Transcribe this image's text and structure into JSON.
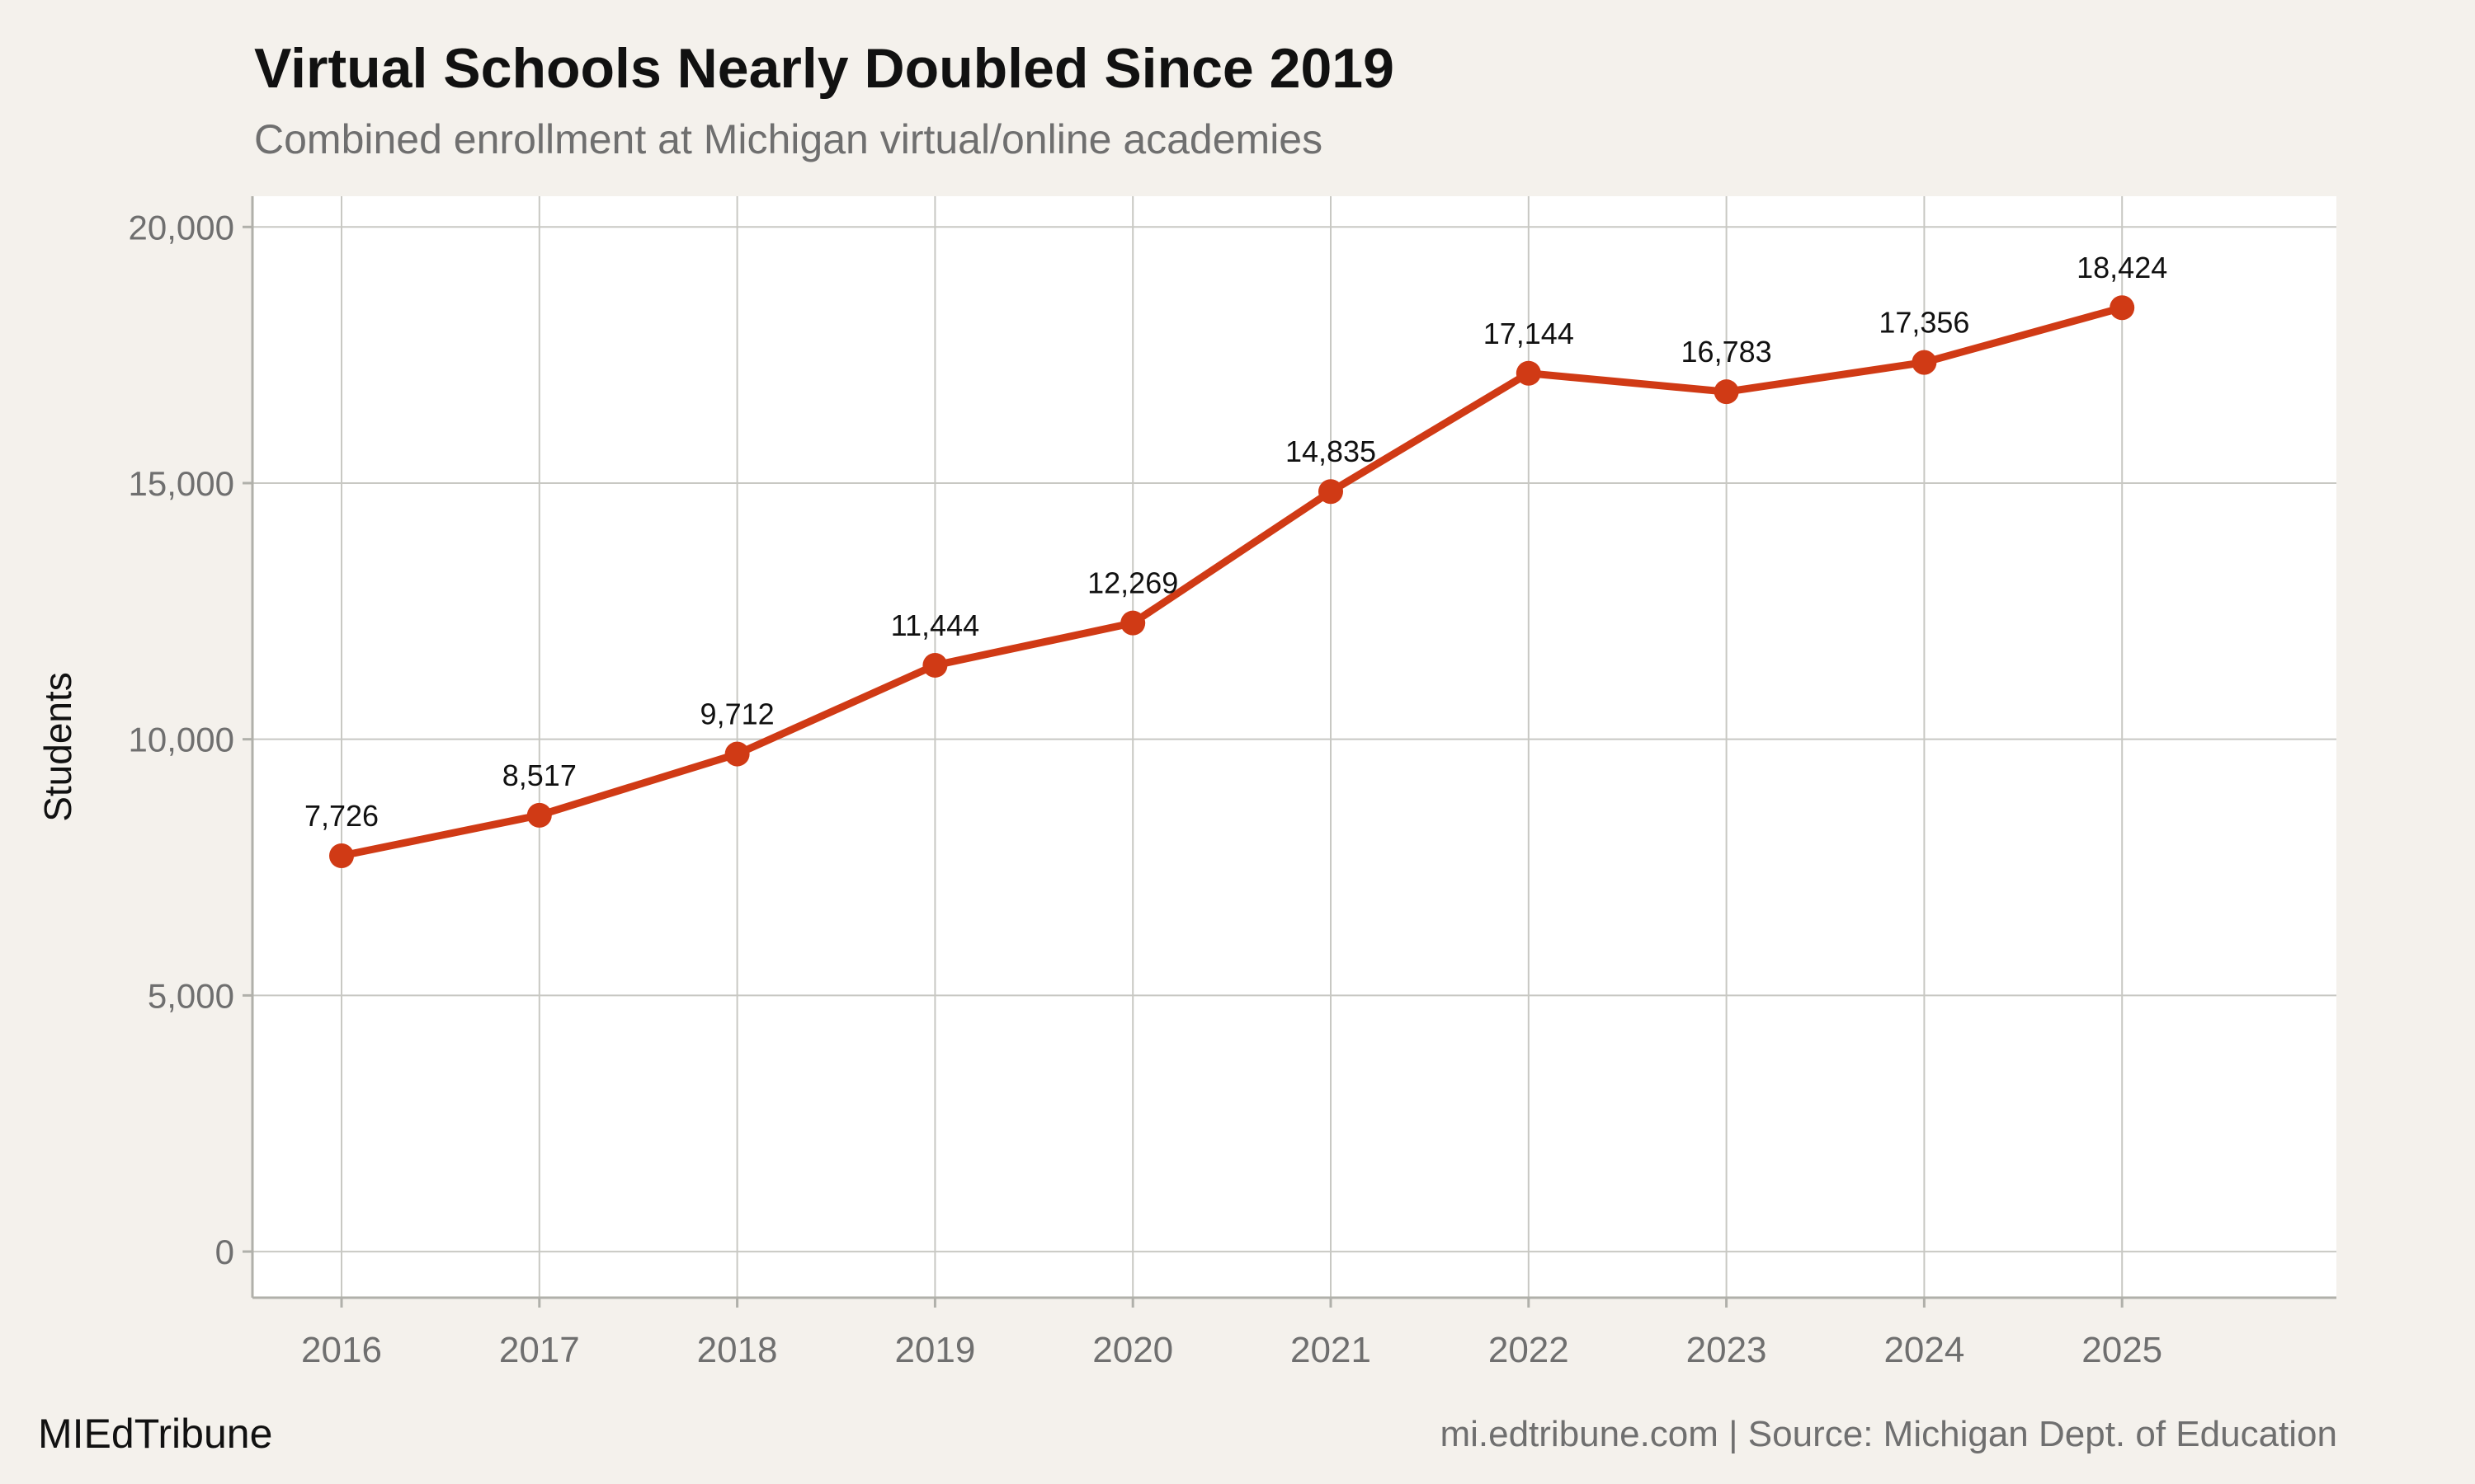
{
  "header": {
    "title": "Virtual Schools Nearly Doubled Since 2019",
    "subtitle": "Combined enrollment at Michigan virtual/online academies"
  },
  "footer": {
    "brand": "MIEdTribune",
    "source": "mi.edtribune.com | Source: Michigan Dept. of Education"
  },
  "colors": {
    "line": "#d03a15",
    "grid": "#c8c8c3",
    "plot_background": "#ffffff",
    "page_background": "#f4f1ec"
  },
  "chart_data": {
    "type": "line",
    "title": "Virtual Schools Nearly Doubled Since 2019",
    "subtitle": "Combined enrollment at Michigan virtual/online academies",
    "xlabel": "",
    "ylabel": "Students",
    "x": [
      "2016",
      "2017",
      "2018",
      "2019",
      "2020",
      "2021",
      "2022",
      "2023",
      "2024",
      "2025"
    ],
    "series": [
      {
        "values": [
          7726,
          8517,
          9712,
          11444,
          12269,
          14835,
          17144,
          16783,
          17356,
          18424
        ],
        "labels": [
          "7,726",
          "8,517",
          "9,712",
          "11,444",
          "12,269",
          "14,835",
          "17,144",
          "16,783",
          "17,356",
          "18,424"
        ]
      }
    ],
    "yticks": [
      0,
      5000,
      10000,
      15000,
      20000
    ],
    "ytick_labels": [
      "0",
      "5,000",
      "10,000",
      "15,000",
      "20,000"
    ],
    "ylim": [
      -900,
      20600
    ],
    "grid": true,
    "legend": "none"
  }
}
